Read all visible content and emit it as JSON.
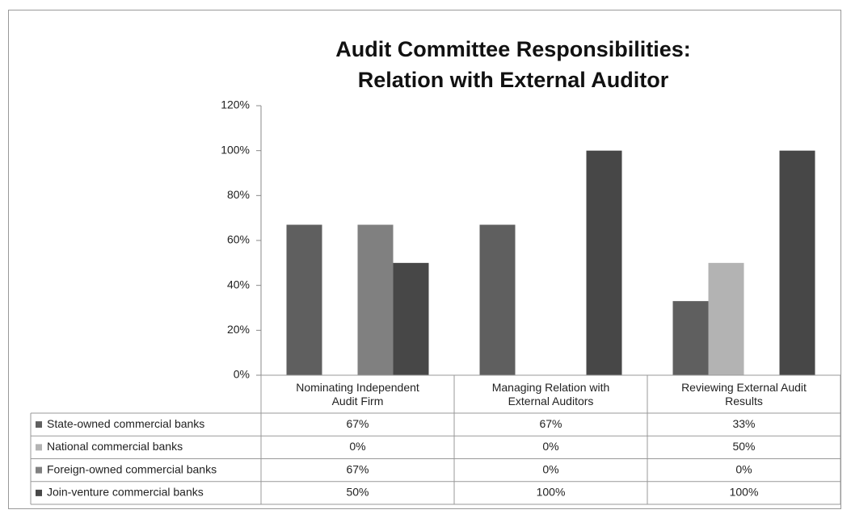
{
  "chart_data": {
    "type": "bar",
    "title": "Audit Committee Responsibilities:\nRelation with External Auditor",
    "categories": [
      "Nominating Independent Audit Firm",
      "Managing Relation with External Auditors",
      "Reviewing External Audit Results"
    ],
    "series": [
      {
        "name": "State-owned commercial banks",
        "color": "#5f5f5f",
        "values": [
          67,
          67,
          33
        ],
        "value_labels": [
          "67%",
          "67%",
          "33%"
        ]
      },
      {
        "name": "National commercial banks",
        "color": "#b3b3b3",
        "values": [
          0,
          0,
          50
        ],
        "value_labels": [
          "0%",
          "0%",
          "50%"
        ]
      },
      {
        "name": "Foreign-owned commercial banks",
        "color": "#808080",
        "values": [
          67,
          0,
          0
        ],
        "value_labels": [
          "67%",
          "0%",
          "0%"
        ]
      },
      {
        "name": "Join-venture commercial banks",
        "color": "#474747",
        "values": [
          50,
          100,
          100
        ],
        "value_labels": [
          "50%",
          "100%",
          "100%"
        ]
      }
    ],
    "ylim": [
      0,
      120
    ],
    "yticks": [
      {
        "value": 0,
        "label": "0%"
      },
      {
        "value": 20,
        "label": "20%"
      },
      {
        "value": 40,
        "label": "40%"
      },
      {
        "value": 60,
        "label": "60%"
      },
      {
        "value": 80,
        "label": "80%"
      },
      {
        "value": 100,
        "label": "100%"
      },
      {
        "value": 120,
        "label": "120%"
      }
    ],
    "grid": false
  }
}
